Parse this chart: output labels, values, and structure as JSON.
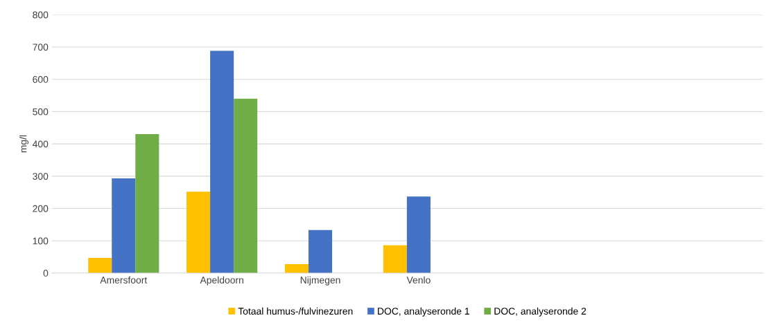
{
  "chart_data": {
    "type": "bar",
    "ylabel": "mg/l",
    "categories": [
      "Amersfoort",
      "Apeldoorn",
      "Nijmegen",
      "Venlo",
      null,
      null,
      null
    ],
    "series": [
      {
        "name": "Totaal humus-/fulvinezuren",
        "color": "#ffc000",
        "values": [
          47,
          252,
          28,
          86,
          null,
          null,
          null
        ]
      },
      {
        "name": "DOC, analyseronde 1",
        "color": "#4472c4",
        "values": [
          293,
          688,
          133,
          237,
          null,
          null,
          null
        ]
      },
      {
        "name": "DOC, analyseronde 2",
        "color": "#70ad47",
        "values": [
          430,
          540,
          null,
          null,
          null,
          null,
          null
        ]
      }
    ],
    "ylim": [
      0,
      800
    ],
    "yticks": [
      0,
      100,
      200,
      300,
      400,
      500,
      600,
      700,
      800
    ],
    "grid": "y",
    "legend": "bottom"
  }
}
